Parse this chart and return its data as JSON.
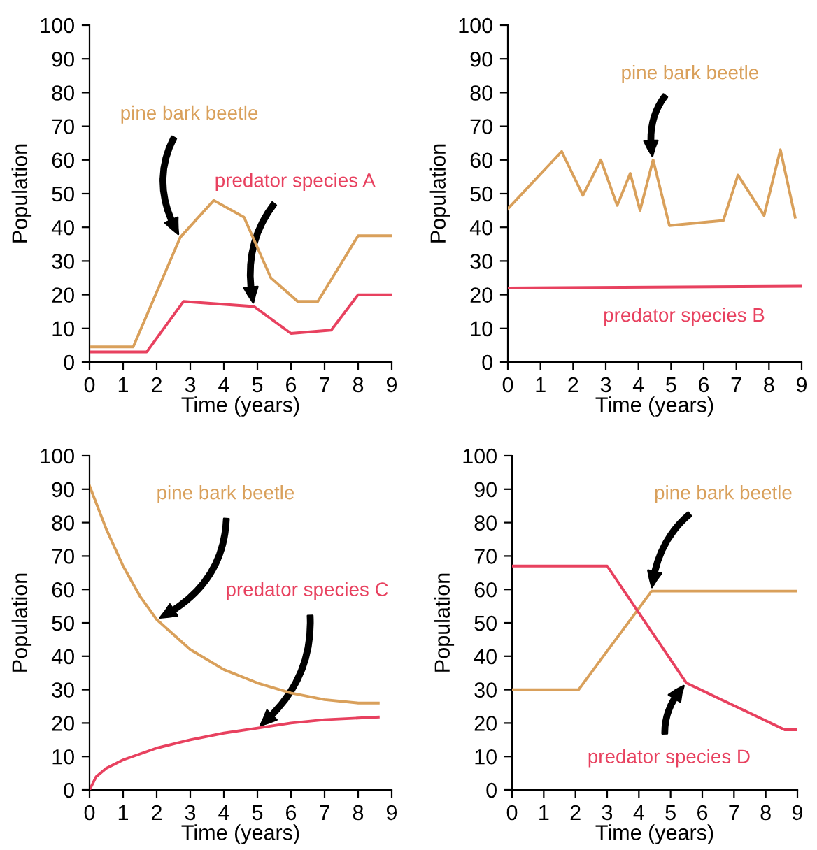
{
  "chart_data": [
    {
      "type": "line",
      "xlabel": "Time (years)",
      "ylabel": "Population",
      "xlim": [
        0,
        9
      ],
      "ylim": [
        0,
        100
      ],
      "xticks": [
        0,
        1,
        2,
        3,
        4,
        5,
        6,
        7,
        8,
        9
      ],
      "yticks": [
        0,
        10,
        20,
        30,
        40,
        50,
        60,
        70,
        80,
        90,
        100
      ],
      "grid": false,
      "series": [
        {
          "name": "pine bark beetle",
          "color": "#d9a05b",
          "x": [
            0,
            1.3,
            2.7,
            3.7,
            4.6,
            5.4,
            6.2,
            6.8,
            8,
            9
          ],
          "values": [
            4.5,
            4.5,
            37,
            48,
            43,
            25,
            18,
            18,
            37.5,
            37.5
          ]
        },
        {
          "name": "predator species A",
          "color": "#e8415f",
          "x": [
            0,
            1.7,
            2.8,
            4.9,
            6,
            7.2,
            8,
            9
          ],
          "values": [
            3,
            3,
            18,
            16.5,
            8.5,
            9.5,
            20,
            20
          ]
        }
      ]
    },
    {
      "type": "line",
      "xlabel": "Time (years)",
      "ylabel": "Population",
      "xlim": [
        0,
        9
      ],
      "ylim": [
        0,
        100
      ],
      "xticks": [
        0,
        1,
        2,
        3,
        4,
        5,
        6,
        7,
        8,
        9
      ],
      "yticks": [
        0,
        10,
        20,
        30,
        40,
        50,
        60,
        70,
        80,
        90,
        100
      ],
      "grid": false,
      "series": [
        {
          "name": "pine bark beetle",
          "color": "#d9a05b",
          "x": [
            0,
            1.65,
            2.3,
            2.85,
            3.35,
            3.75,
            4.05,
            4.45,
            4.95,
            6.6,
            7.05,
            7.85,
            8.35,
            8.8
          ],
          "values": [
            45.5,
            62.5,
            49.5,
            60,
            46.5,
            56,
            45,
            60,
            40.5,
            42,
            55.5,
            43.5,
            63,
            43
          ]
        },
        {
          "name": "predator species B",
          "color": "#e8415f",
          "x": [
            0,
            9
          ],
          "values": [
            22,
            22.5
          ]
        }
      ]
    },
    {
      "type": "line",
      "xlabel": "Time (years)",
      "ylabel": "Population",
      "xlim": [
        0,
        9
      ],
      "ylim": [
        0,
        100
      ],
      "xticks": [
        0,
        1,
        2,
        3,
        4,
        5,
        6,
        7,
        8,
        9
      ],
      "yticks": [
        0,
        10,
        20,
        30,
        40,
        50,
        60,
        70,
        80,
        90,
        100
      ],
      "grid": false,
      "series": [
        {
          "name": "pine bark beetle",
          "color": "#d9a05b",
          "x": [
            0,
            0.5,
            1,
            1.5,
            2,
            3,
            4,
            5,
            6,
            7,
            8,
            8.6
          ],
          "values": [
            91,
            78,
            67,
            58,
            51,
            42,
            36,
            32,
            29,
            27,
            26,
            26
          ]
        },
        {
          "name": "predator species C",
          "color": "#e8415f",
          "x": [
            0,
            0.2,
            0.5,
            1,
            2,
            3,
            4,
            5,
            6,
            7,
            8,
            8.6
          ],
          "values": [
            0,
            4,
            6.5,
            9,
            12.5,
            15,
            17,
            18.5,
            20,
            21,
            21.5,
            21.8
          ]
        }
      ]
    },
    {
      "type": "line",
      "xlabel": "Time (years)",
      "ylabel": "Population",
      "xlim": [
        0,
        9
      ],
      "ylim": [
        0,
        100
      ],
      "xticks": [
        0,
        1,
        2,
        3,
        4,
        5,
        6,
        7,
        8,
        9
      ],
      "yticks": [
        0,
        10,
        20,
        30,
        40,
        50,
        60,
        70,
        80,
        90,
        100
      ],
      "grid": false,
      "series": [
        {
          "name": "pine bark beetle",
          "color": "#d9a05b",
          "x": [
            0,
            2.1,
            4.4,
            9
          ],
          "values": [
            30,
            30,
            59.5,
            59.5
          ]
        },
        {
          "name": "predator species D",
          "color": "#e8415f",
          "x": [
            0,
            3,
            5.5,
            8.6,
            9
          ],
          "values": [
            67,
            67,
            32,
            18,
            18
          ]
        }
      ]
    }
  ]
}
